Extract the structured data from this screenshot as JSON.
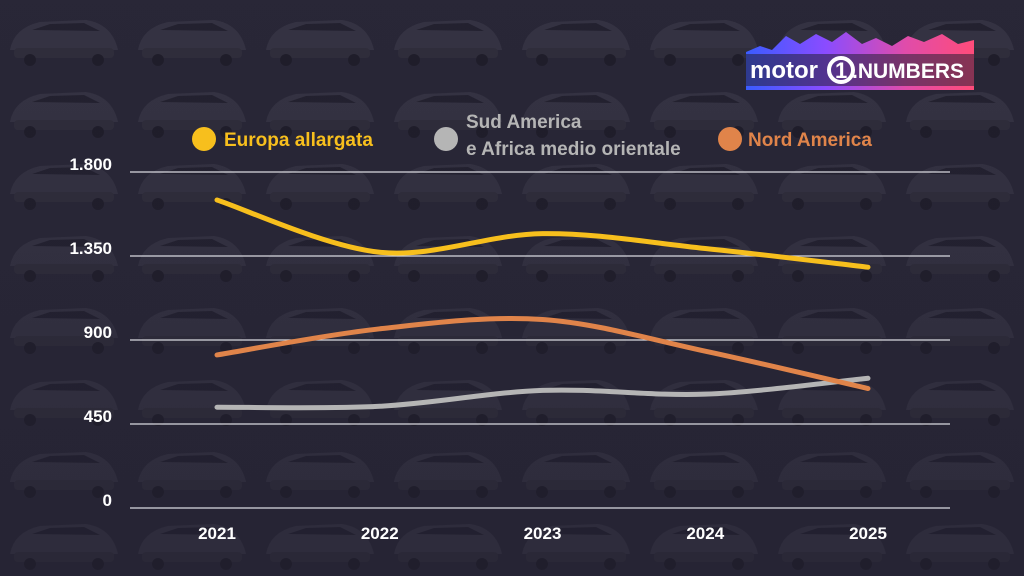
{
  "brand": {
    "part1": "motor",
    "part2": "1",
    "part3": ".NUMBERS",
    "wave_colors": [
      "#3a5cff",
      "#8a4cff",
      "#e04caa",
      "#ff4c7a"
    ]
  },
  "colors": {
    "background": "#2a2838",
    "grid": "#d9d9e0",
    "text": "#ffffff"
  },
  "chart_data": {
    "type": "line",
    "title": "",
    "xlabel": "",
    "ylabel": "",
    "categories": [
      "2021",
      "2022",
      "2023",
      "2024",
      "2025"
    ],
    "ylim": [
      0,
      1800
    ],
    "yticks": [
      0,
      450,
      900,
      1350,
      1800
    ],
    "ytick_labels": [
      "0",
      "450",
      "900",
      "1.350",
      "1.800"
    ],
    "grid": true,
    "legend_position": "top",
    "series": [
      {
        "name": "Europa allargata",
        "name_lines": [
          "Europa allargata"
        ],
        "color": "#f7bf1d",
        "values": [
          1650,
          1370,
          1470,
          1390,
          1290
        ]
      },
      {
        "name": "Sud America e Africa medio orientale",
        "name_lines": [
          "Sud America",
          "e Africa medio orientale"
        ],
        "color": "#b5b5b5",
        "values": [
          540,
          545,
          630,
          610,
          695
        ]
      },
      {
        "name": "Nord America",
        "name_lines": [
          "Nord America"
        ],
        "color": "#e0844a",
        "values": [
          820,
          960,
          1010,
          840,
          640
        ]
      }
    ]
  }
}
